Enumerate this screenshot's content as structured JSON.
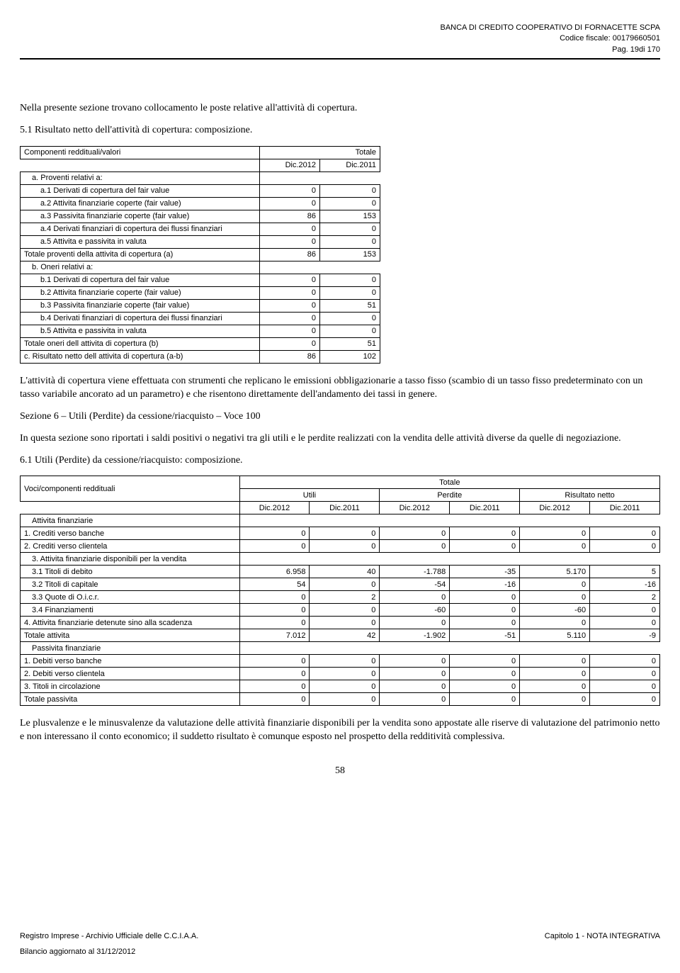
{
  "header": {
    "line1": "BANCA DI CREDITO COOPERATIVO DI FORNACETTE SCPA",
    "line2": "Codice fiscale: 00179660501",
    "line3": "Pag. 19di 170"
  },
  "intro": "Nella presente sezione trovano collocamento le poste relative all'attività di copertura.",
  "sec5_1_title": "5.1 Risultato netto dell'attività di copertura: composizione.",
  "table1": {
    "header_main": "Componenti reddituali/valori",
    "header_total": "Totale",
    "header_y1": "Dic.2012",
    "header_y2": "Dic.2011",
    "rows": [
      {
        "label": "a. Proventi relativi a:",
        "indent": 1,
        "v1": "",
        "v2": "",
        "blank": true
      },
      {
        "label": "a.1 Derivati di copertura del fair value",
        "indent": 2,
        "v1": "0",
        "v2": "0"
      },
      {
        "label": "a.2 Attivita finanziarie coperte (fair value)",
        "indent": 2,
        "v1": "0",
        "v2": "0"
      },
      {
        "label": "a.3 Passivita finanziarie coperte (fair value)",
        "indent": 2,
        "v1": "86",
        "v2": "153"
      },
      {
        "label": "a.4 Derivati finanziari di copertura dei flussi finanziari",
        "indent": 2,
        "v1": "0",
        "v2": "0"
      },
      {
        "label": "a.5 Attivita e passivita in valuta",
        "indent": 2,
        "v1": "0",
        "v2": "0"
      },
      {
        "label": "Totale proventi della attivita di copertura (a)",
        "indent": 0,
        "v1": "86",
        "v2": "153"
      },
      {
        "label": "b. Oneri relativi a:",
        "indent": 1,
        "v1": "",
        "v2": "",
        "blank": true
      },
      {
        "label": "b.1 Derivati di copertura del fair value",
        "indent": 2,
        "v1": "0",
        "v2": "0"
      },
      {
        "label": "b.2 Attivita finanziarie coperte (fair value)",
        "indent": 2,
        "v1": "0",
        "v2": "0"
      },
      {
        "label": "b.3 Passivita finanziarie coperte (fair value)",
        "indent": 2,
        "v1": "0",
        "v2": "51"
      },
      {
        "label": "b.4 Derivati finanziari di copertura dei flussi finanziari",
        "indent": 2,
        "v1": "0",
        "v2": "0"
      },
      {
        "label": "b.5 Attivita e passivita in valuta",
        "indent": 2,
        "v1": "0",
        "v2": "0"
      },
      {
        "label": "Totale oneri dell attivita di copertura (b)",
        "indent": 0,
        "v1": "0",
        "v2": "51"
      },
      {
        "label": "c. Risultato netto dell attivita di copertura (a-b)",
        "indent": 0,
        "v1": "86",
        "v2": "102"
      }
    ]
  },
  "para_after_t1": "L'attività di copertura viene effettuata con strumenti che replicano le emissioni obbligazionarie a tasso fisso (scambio di un tasso fisso predeterminato con un tasso variabile ancorato ad un parametro) e che risentono direttamente dell'andamento dei tassi in genere.",
  "sec6_title": "Sezione 6 – Utili (Perdite) da cessione/riacquisto – Voce 100",
  "sec6_intro": "In questa sezione sono riportati i saldi positivi o negativi tra gli utili e le perdite realizzati con la vendita delle attività diverse da quelle di negoziazione.",
  "sec6_1_title": "6.1 Utili (Perdite) da cessione/riacquisto: composizione.",
  "table2": {
    "header_main": "Voci/componenti reddituali",
    "header_total": "Totale",
    "sub1": "Utili",
    "sub2": "Perdite",
    "sub3": "Risultato netto",
    "y1": "Dic.2012",
    "y2": "Dic.2011",
    "rows": [
      {
        "label": "Attivita finanziarie",
        "indent": 1,
        "vals": [
          "",
          "",
          "",
          "",
          "",
          ""
        ],
        "blank": true
      },
      {
        "label": "1. Crediti verso banche",
        "indent": 0,
        "vals": [
          "0",
          "0",
          "0",
          "0",
          "0",
          "0"
        ]
      },
      {
        "label": "2. Crediti verso clientela",
        "indent": 0,
        "vals": [
          "0",
          "0",
          "0",
          "0",
          "0",
          "0"
        ]
      },
      {
        "label": "3. Attivita finanziarie disponibili per la vendita",
        "indent": 1,
        "vals": [
          "",
          "",
          "",
          "",
          "",
          ""
        ],
        "blank": true
      },
      {
        "label": "3.1 Titoli di debito",
        "indent": 1,
        "vals": [
          "6.958",
          "40",
          "-1.788",
          "-35",
          "5.170",
          "5"
        ]
      },
      {
        "label": "3.2 Titoli di capitale",
        "indent": 1,
        "vals": [
          "54",
          "0",
          "-54",
          "-16",
          "0",
          "-16"
        ]
      },
      {
        "label": "3.3 Quote di O.i.c.r.",
        "indent": 1,
        "vals": [
          "0",
          "2",
          "0",
          "0",
          "0",
          "2"
        ]
      },
      {
        "label": "3.4 Finanziamenti",
        "indent": 1,
        "vals": [
          "0",
          "0",
          "-60",
          "0",
          "-60",
          "0"
        ]
      },
      {
        "label": "4. Attivita finanziarie detenute sino alla scadenza",
        "indent": 0,
        "vals": [
          "0",
          "0",
          "0",
          "0",
          "0",
          "0"
        ]
      },
      {
        "label": "Totale attivita",
        "indent": 0,
        "vals": [
          "7.012",
          "42",
          "-1.902",
          "-51",
          "5.110",
          "-9"
        ]
      },
      {
        "label": "Passivita finanziarie",
        "indent": 1,
        "vals": [
          "",
          "",
          "",
          "",
          "",
          ""
        ],
        "blank": true
      },
      {
        "label": "1. Debiti verso banche",
        "indent": 0,
        "vals": [
          "0",
          "0",
          "0",
          "0",
          "0",
          "0"
        ]
      },
      {
        "label": "2. Debiti verso clientela",
        "indent": 0,
        "vals": [
          "0",
          "0",
          "0",
          "0",
          "0",
          "0"
        ]
      },
      {
        "label": "3. Titoli in circolazione",
        "indent": 0,
        "vals": [
          "0",
          "0",
          "0",
          "0",
          "0",
          "0"
        ]
      },
      {
        "label": "Totale passivita",
        "indent": 0,
        "vals": [
          "0",
          "0",
          "0",
          "0",
          "0",
          "0"
        ]
      }
    ]
  },
  "para_after_t2": "Le plusvalenze  e le minusvalenze da valutazione delle attività finanziarie disponibili per la vendita sono appostate alle riserve di valutazione del patrimonio netto e non interessano il conto economico; il suddetto risultato è comunque esposto nel prospetto della redditività complessiva.",
  "page_number": "58",
  "footer": {
    "left": "Registro Imprese - Archivio Ufficiale delle C.C.I.A.A.",
    "right": "Capitolo 1 - NOTA INTEGRATIVA",
    "bottom": "Bilancio aggiornato al 31/12/2012"
  }
}
